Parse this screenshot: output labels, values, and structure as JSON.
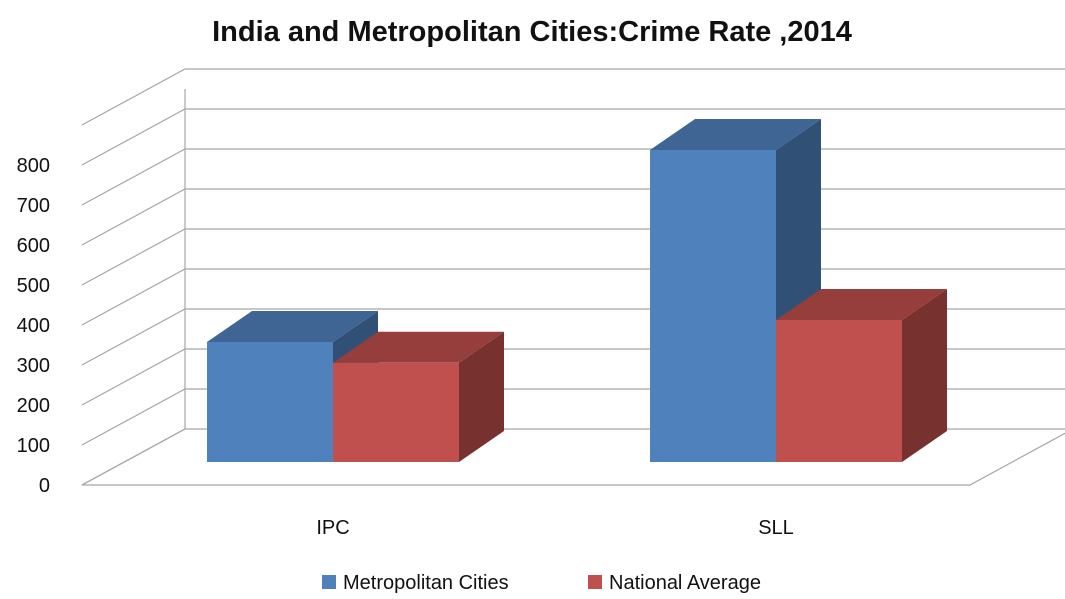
{
  "chart_data": {
    "type": "bar",
    "title": "India and Metropolitan Cities:Crime Rate ,2014",
    "categories": [
      "IPC",
      "SLL"
    ],
    "series": [
      {
        "name": "Metropolitan Cities",
        "values": [
          300,
          780
        ],
        "color": "#4f81bd"
      },
      {
        "name": "National Average",
        "values": [
          248,
          355
        ],
        "color": "#c0504d"
      }
    ],
    "yticks": [
      "0",
      "100",
      "200",
      "300",
      "400",
      "500",
      "600",
      "700",
      "800"
    ],
    "ylim": [
      0,
      800
    ],
    "grid": true,
    "legend": "bottom",
    "style": "3d-clustered-column"
  }
}
